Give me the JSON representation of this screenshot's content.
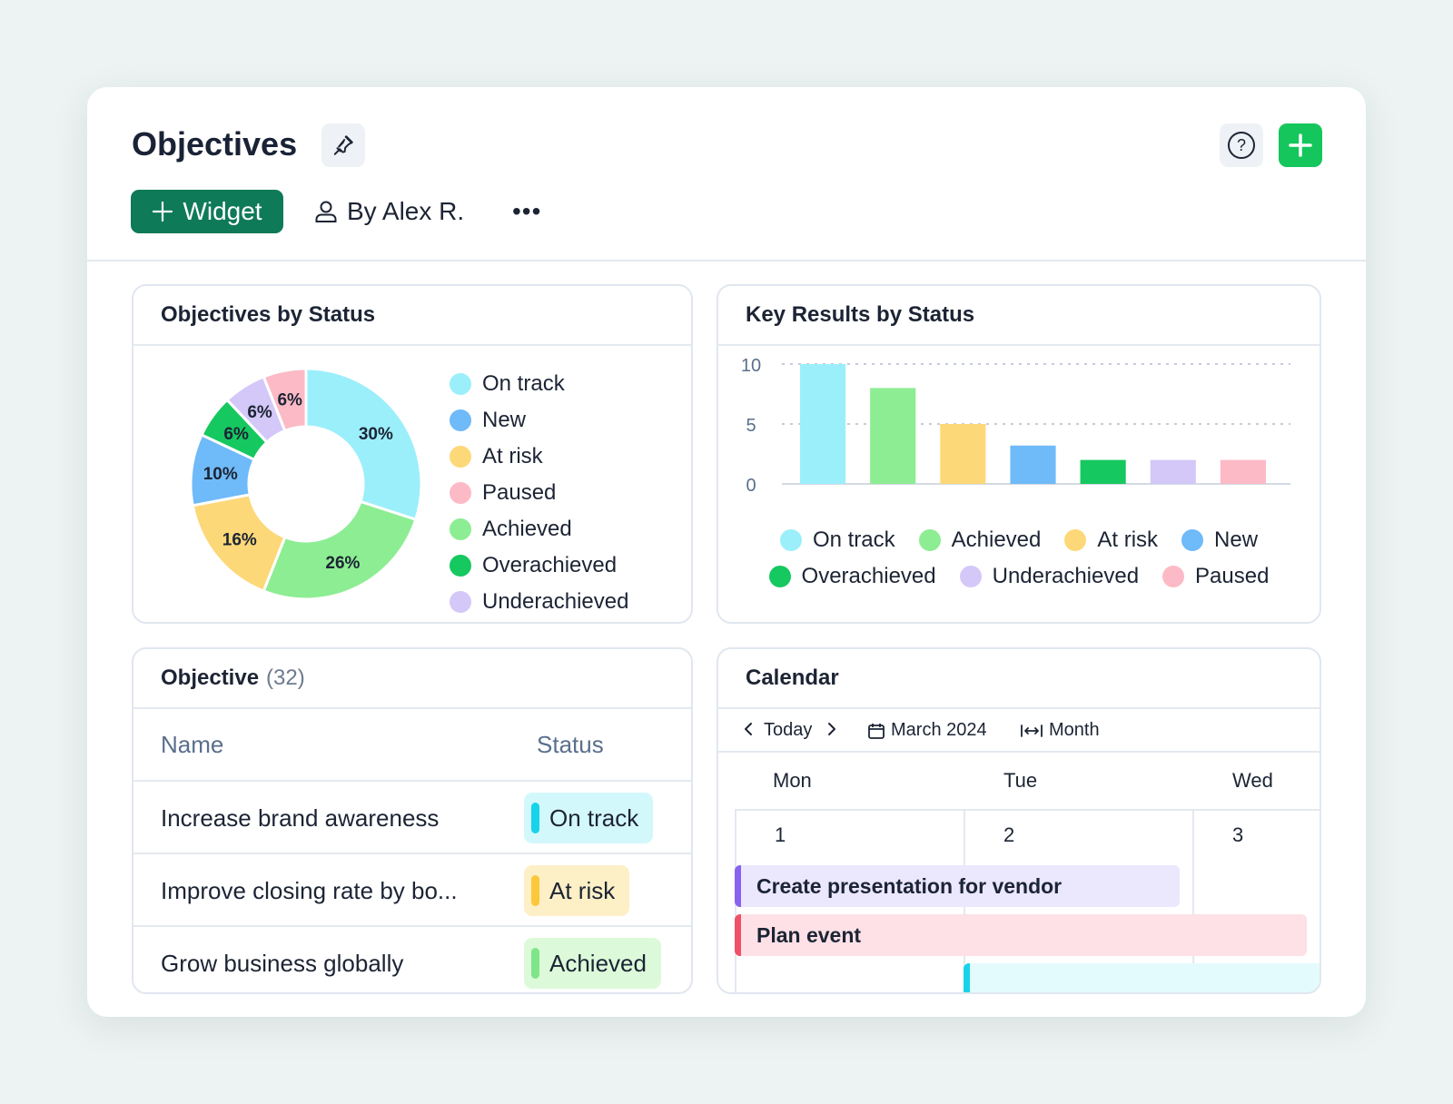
{
  "colors": {
    "on_track": "#9beffa",
    "new": "#6fbaf8",
    "at_risk": "#fdd878",
    "paused": "#fcbac6",
    "achieved": "#8ded93",
    "overachieved": "#16c860",
    "underachieved": "#d4c8f8",
    "brand_green": "#14c65c",
    "brand_dark_green": "#0e7a57"
  },
  "header": {
    "title": "Objectives",
    "widget_label": "Widget",
    "owner_label": "By Alex R.",
    "more_label": "•••",
    "help_label": "?",
    "icons": {
      "pin": "pin-icon",
      "help": "help-circle-icon",
      "add": "plus-icon",
      "user": "user-icon"
    }
  },
  "objectives_by_status": {
    "title": "Objectives by Status",
    "legend": [
      "On track",
      "New",
      "At risk",
      "Paused",
      "Achieved",
      "Overachieved",
      "Underachieved"
    ]
  },
  "key_results_by_status": {
    "title": "Key Results by Status",
    "legend_row1": [
      "On track",
      "Achieved",
      "At risk",
      "New"
    ],
    "legend_row2": [
      "Overachieved",
      "Underachieved",
      "Paused"
    ]
  },
  "objective_list": {
    "title": "Objective",
    "count": "(32)",
    "columns": {
      "name": "Name",
      "status": "Status"
    },
    "rows": [
      {
        "name": "Increase brand awareness",
        "status": "On track"
      },
      {
        "name": "Improve closing rate by bo...",
        "status": "At risk"
      },
      {
        "name": "Grow business globally",
        "status": "Achieved"
      }
    ]
  },
  "calendar": {
    "title": "Calendar",
    "today_label": "Today",
    "month_label": "March 2024",
    "view_label": "Month",
    "days": [
      {
        "name": "Mon",
        "num": "1"
      },
      {
        "name": "Tue",
        "num": "2"
      },
      {
        "name": "Wed",
        "num": "3"
      }
    ],
    "events": [
      {
        "title": "Create presentation for vendor"
      },
      {
        "title": "Plan event"
      },
      {
        "title": ""
      }
    ]
  },
  "chart_data": [
    {
      "type": "pie",
      "title": "Objectives by Status",
      "donut": true,
      "slices": [
        {
          "name": "On track",
          "value": 30,
          "label": "30%",
          "color": "#9beffa"
        },
        {
          "name": "Achieved",
          "value": 26,
          "label": "26%",
          "color": "#8ded93"
        },
        {
          "name": "At risk",
          "value": 16,
          "label": "16%",
          "color": "#fdd878"
        },
        {
          "name": "New",
          "value": 10,
          "label": "10%",
          "color": "#6fbaf8"
        },
        {
          "name": "Overachieved",
          "value": 6,
          "label": "6%",
          "color": "#16c860"
        },
        {
          "name": "Underachieved",
          "value": 6,
          "label": "6%",
          "color": "#d4c8f8"
        },
        {
          "name": "Paused",
          "value": 6,
          "label": "6%",
          "color": "#fcbac6"
        }
      ],
      "legend_placement": "right"
    },
    {
      "type": "bar",
      "title": "Key Results by Status",
      "categories": [
        "On track",
        "Achieved",
        "At risk",
        "New",
        "Overachieved",
        "Underachieved",
        "Paused"
      ],
      "values": [
        10,
        8,
        5,
        3.2,
        2,
        2,
        2
      ],
      "colors": [
        "#9beffa",
        "#8ded93",
        "#fdd878",
        "#6fbaf8",
        "#16c860",
        "#d4c8f8",
        "#fcbac6"
      ],
      "ylim": [
        0,
        10
      ],
      "yticks": [
        "0",
        "5",
        "10"
      ],
      "grid": true,
      "legend_placement": "bottom"
    }
  ]
}
